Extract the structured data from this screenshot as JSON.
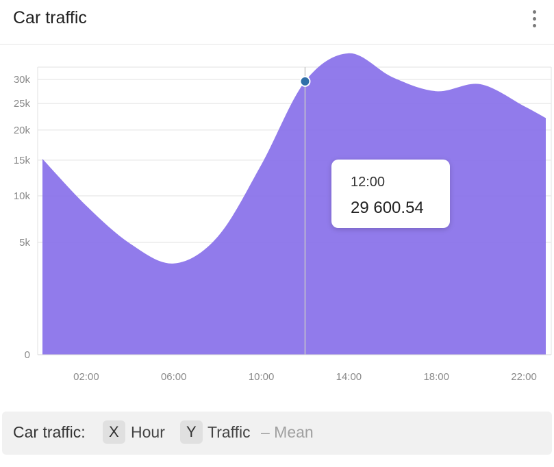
{
  "header": {
    "title": "Car traffic",
    "menu_icon": "kebab-menu-icon"
  },
  "chart_data": {
    "type": "area",
    "title": "Car traffic",
    "xlabel": "Hour",
    "ylabel": "Traffic",
    "color": "#8b74ea",
    "y_scale": "sqrt",
    "x_ticks": [
      "02:00",
      "06:00",
      "10:00",
      "14:00",
      "18:00",
      "22:00"
    ],
    "y_ticks": [
      "0",
      "5k",
      "10k",
      "15k",
      "20k",
      "25k",
      "30k"
    ],
    "y_tick_values": [
      0,
      5000,
      10000,
      15000,
      20000,
      25000,
      30000
    ],
    "series": [
      {
        "name": "Traffic – Mean",
        "x": [
          "00:00",
          "02:00",
          "04:00",
          "06:00",
          "08:00",
          "10:00",
          "12:00",
          "14:00",
          "16:00",
          "18:00",
          "20:00",
          "22:00",
          "23:00"
        ],
        "values": [
          15200,
          8800,
          4900,
          3300,
          5500,
          14300,
          29600.54,
          36000,
          30500,
          27500,
          29000,
          24500,
          22200
        ]
      }
    ],
    "hover": {
      "x": "12:00",
      "value": "29 600.54"
    }
  },
  "footer": {
    "label": "Car traffic:",
    "x_chip": "X",
    "x_label": "Hour",
    "y_chip": "Y",
    "y_label": "Traffic",
    "y_suffix": "– Mean"
  }
}
